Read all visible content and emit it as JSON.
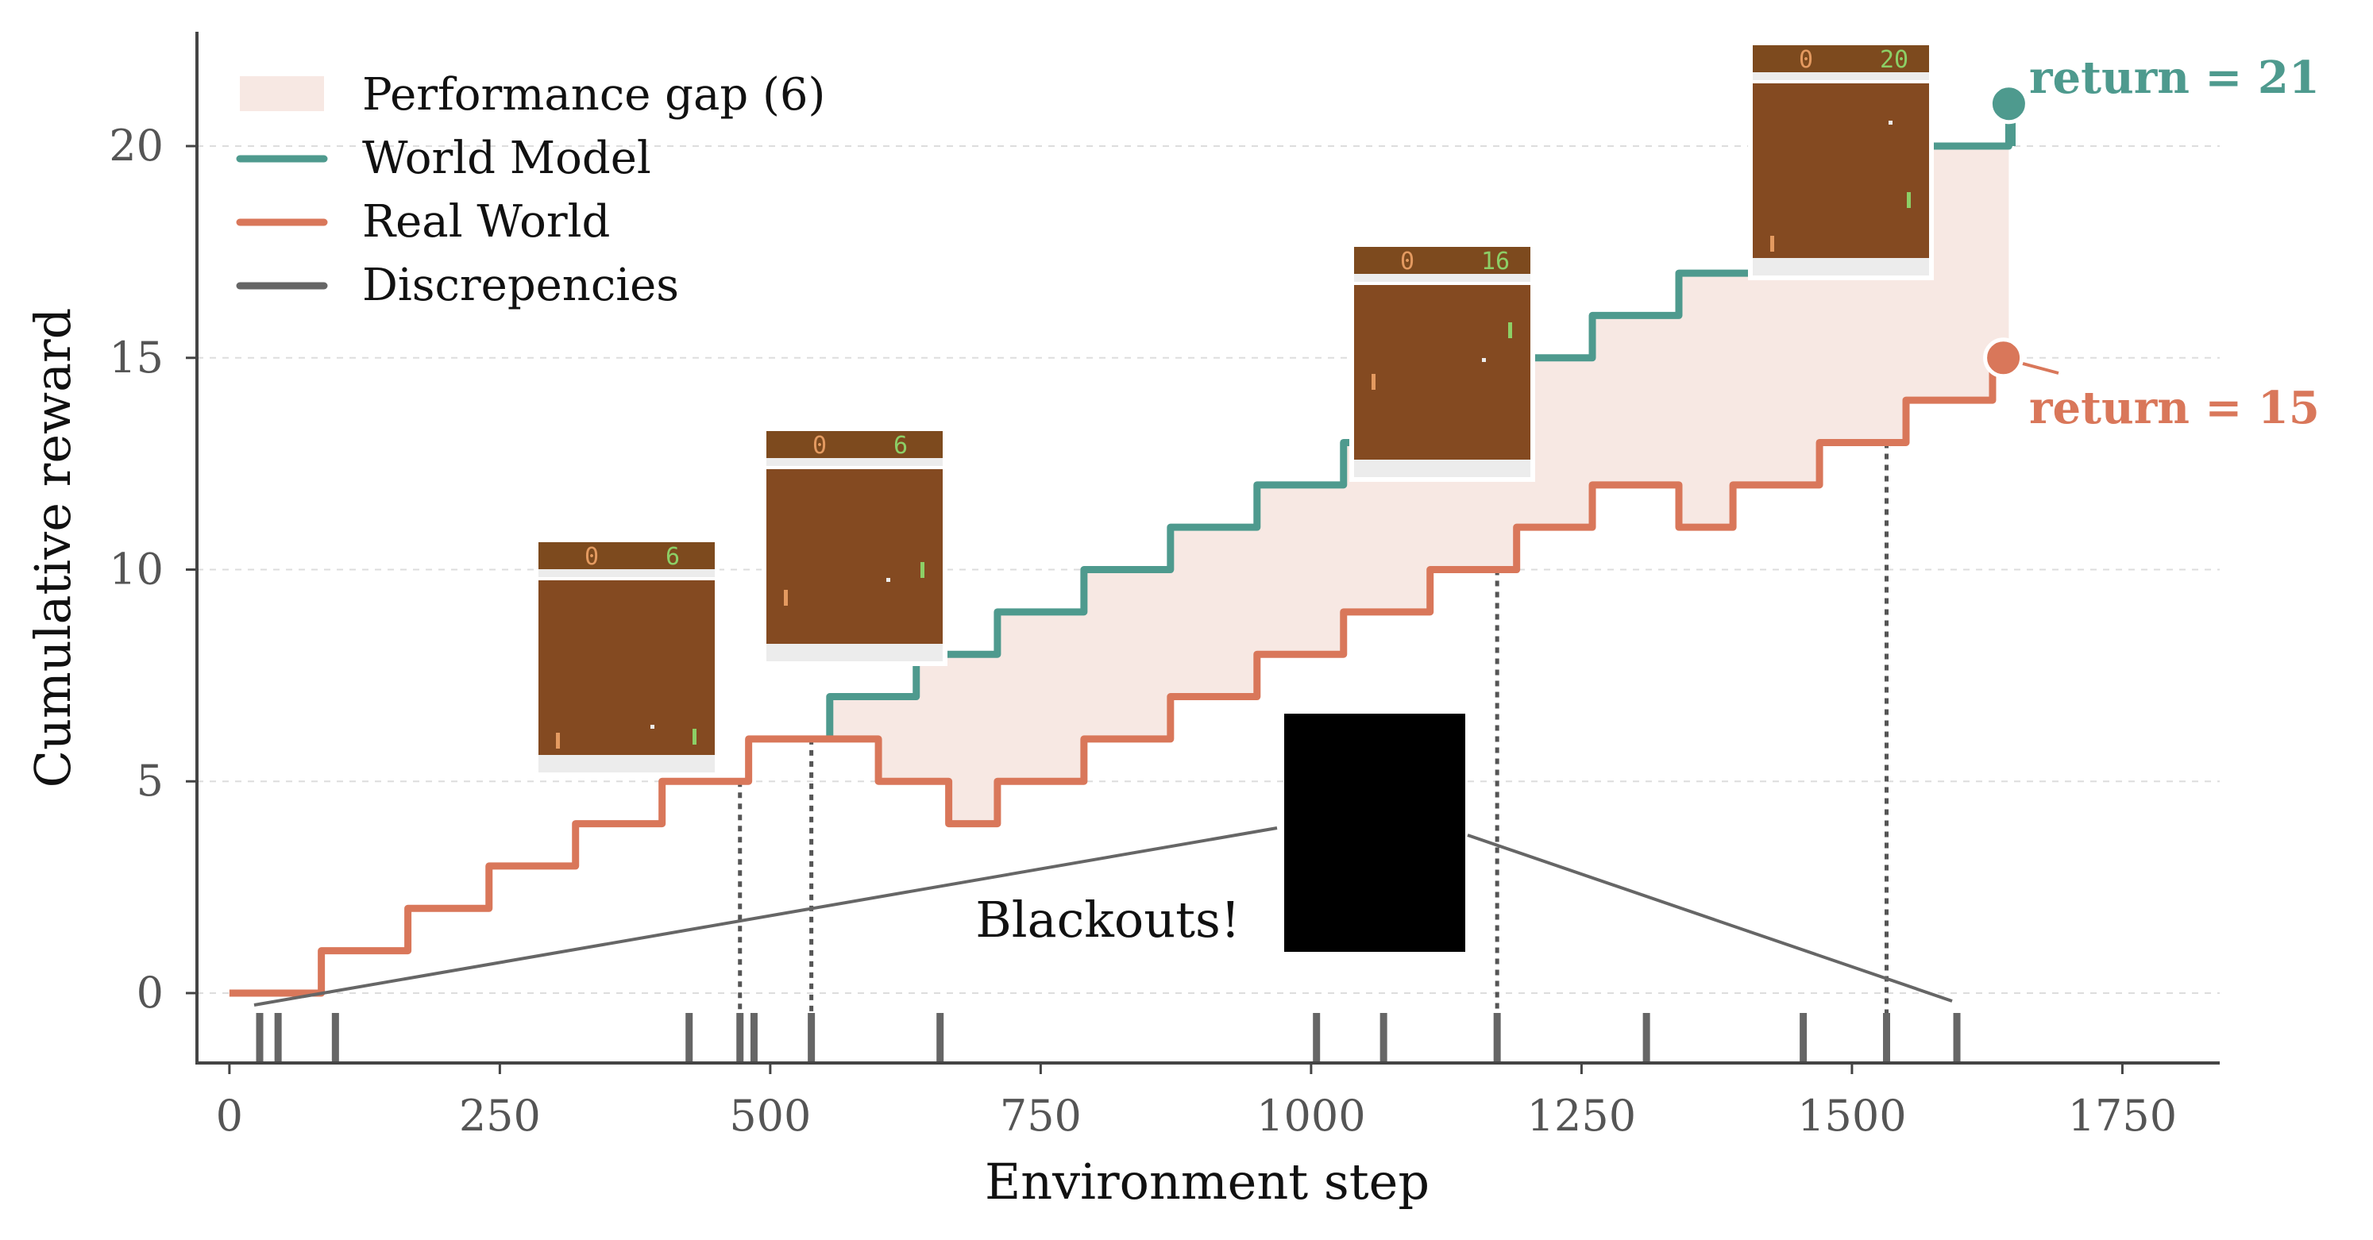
{
  "chart_data": {
    "type": "line",
    "xlabel": "Environment step",
    "ylabel": "Cumulative reward",
    "xlim": [
      -30,
      1840
    ],
    "ylim": [
      -1.65,
      22.7
    ],
    "xticks": [
      0,
      250,
      500,
      750,
      1000,
      1250,
      1500,
      1750
    ],
    "yticks": [
      0,
      5,
      10,
      15,
      20
    ],
    "grid": "horizontal dashed",
    "legend_position": "top-left",
    "legend": [
      {
        "label": "Performance gap  (6)",
        "kind": "patch"
      },
      {
        "label": "World Model",
        "kind": "line"
      },
      {
        "label": "Real World",
        "kind": "line"
      },
      {
        "label": "Discrepencies",
        "kind": "line"
      }
    ],
    "series": [
      {
        "name": "World Model",
        "color": "#4e9a8e",
        "step_x": [
          555,
          635,
          710,
          790,
          870,
          950,
          1030,
          1110,
          1190,
          1260,
          1340,
          1420,
          1500,
          1570,
          1645
        ],
        "y_start": 6,
        "y_values": [
          7,
          8,
          9,
          10,
          11,
          12,
          13,
          14,
          15,
          16,
          17,
          18,
          19,
          20,
          21
        ]
      },
      {
        "name": "Real World",
        "color": "#d9775a",
        "step_x": [
          85,
          165,
          240,
          320,
          400,
          480,
          600,
          665,
          710,
          790,
          870,
          950,
          1030,
          1110,
          1190,
          1260,
          1340,
          1390,
          1470,
          1550,
          1630
        ],
        "y_start": 0,
        "y_values": [
          1,
          2,
          3,
          4,
          5,
          6,
          5,
          4,
          5,
          6,
          7,
          8,
          9,
          10,
          11,
          12,
          11,
          12,
          13,
          14,
          15
        ]
      }
    ],
    "gap_region": {
      "label": "Performance gap  (6)",
      "x_start": 555,
      "x_end": 1645
    },
    "discrepancies_x": [
      28,
      45,
      98,
      425,
      472,
      485,
      538,
      657,
      1005,
      1067,
      1172,
      1310,
      1455,
      1532,
      1597
    ],
    "dotted_lines_x": [
      472,
      538,
      1172,
      1532
    ],
    "endpoints": [
      {
        "label": "return = 21",
        "x": 1645,
        "y": 21,
        "color": "#4e9a8e"
      },
      {
        "label": "return = 15",
        "x": 1640,
        "y": 15,
        "color": "#d9775a"
      }
    ],
    "annotation": {
      "text": "Blackouts!"
    },
    "frames": [
      {
        "score_left": "0",
        "score_right": "6"
      },
      {
        "score_left": "0",
        "score_right": "6"
      },
      {
        "score_left": "0",
        "score_right": "16"
      },
      {
        "score_left": "0",
        "score_right": "20"
      }
    ]
  }
}
